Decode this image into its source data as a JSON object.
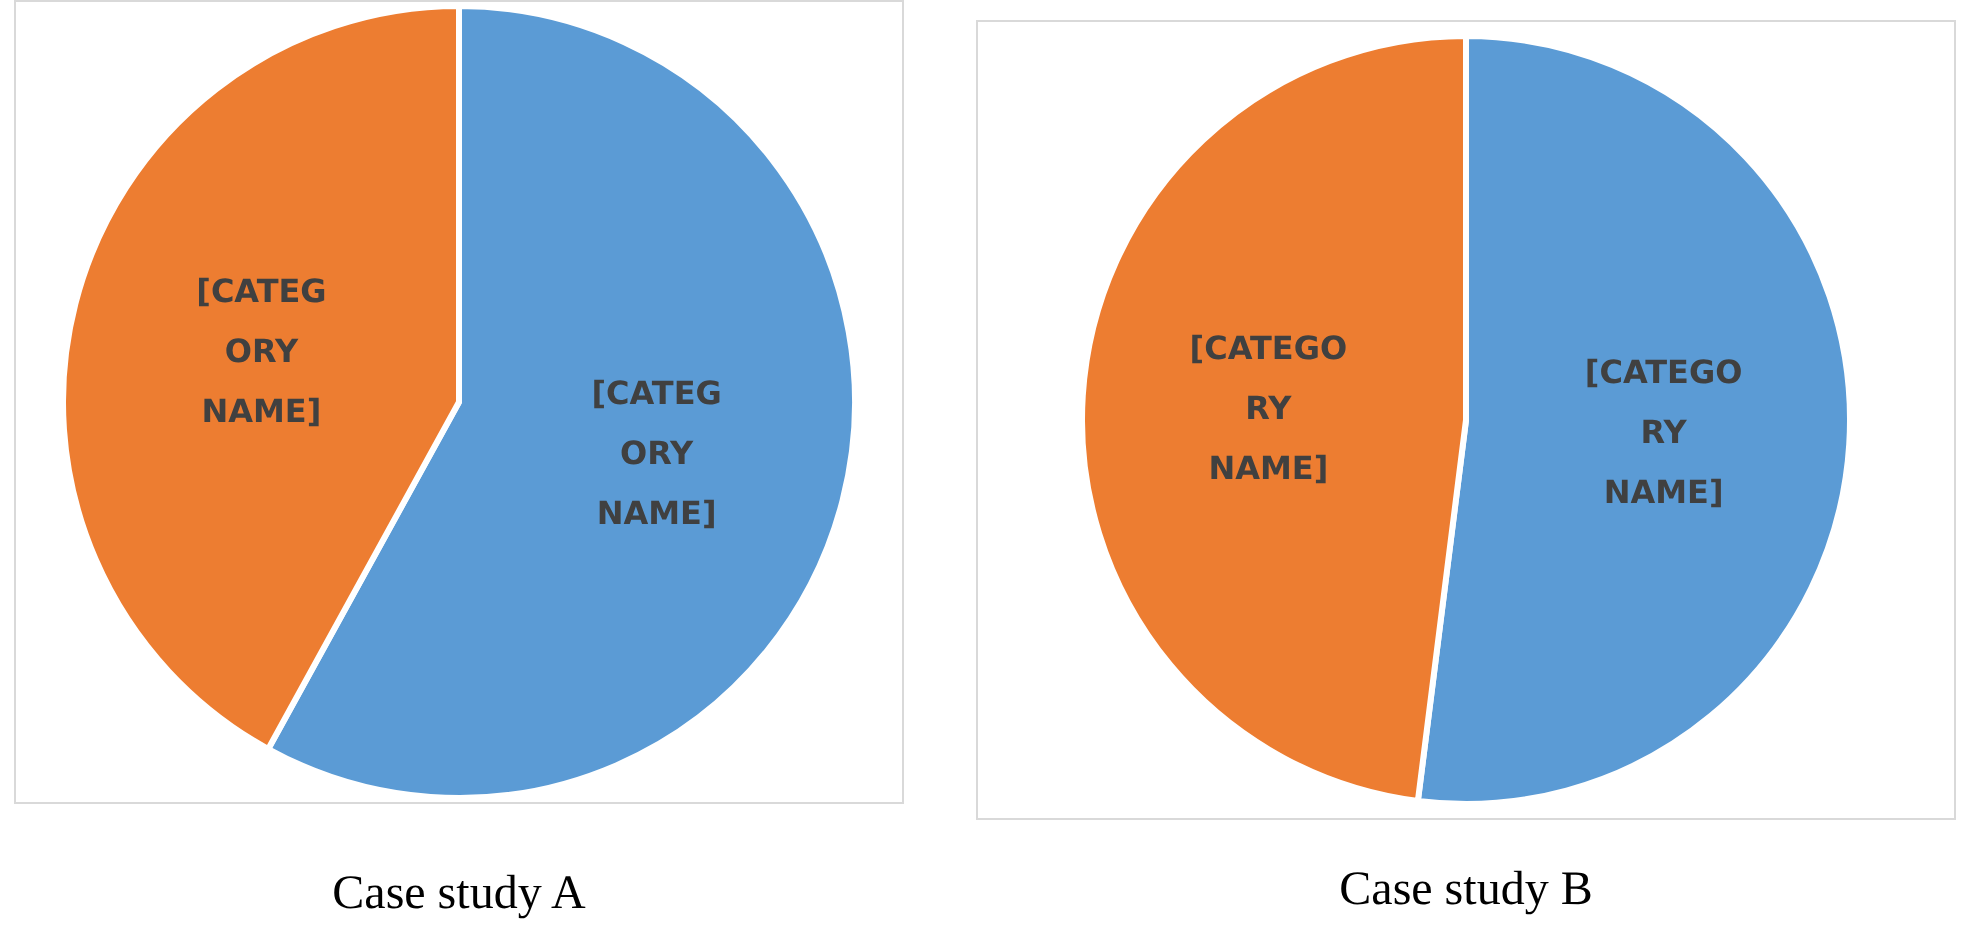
{
  "chart_data": [
    {
      "type": "pie",
      "title": "Case study A",
      "categories": [
        "[CATEG\nORY\nNAME]",
        "[CATEG\nORY\nNAME]"
      ],
      "values": [
        58,
        42
      ],
      "colors": [
        "#5b9bd5",
        "#ed7d31"
      ]
    },
    {
      "type": "pie",
      "title": "Case study B",
      "categories": [
        "[CATEGO\nRY\nNAME]",
        "[CATEGO\nRY\nNAME]"
      ],
      "values": [
        52,
        48
      ],
      "colors": [
        "#5b9bd5",
        "#ed7d31"
      ]
    }
  ]
}
